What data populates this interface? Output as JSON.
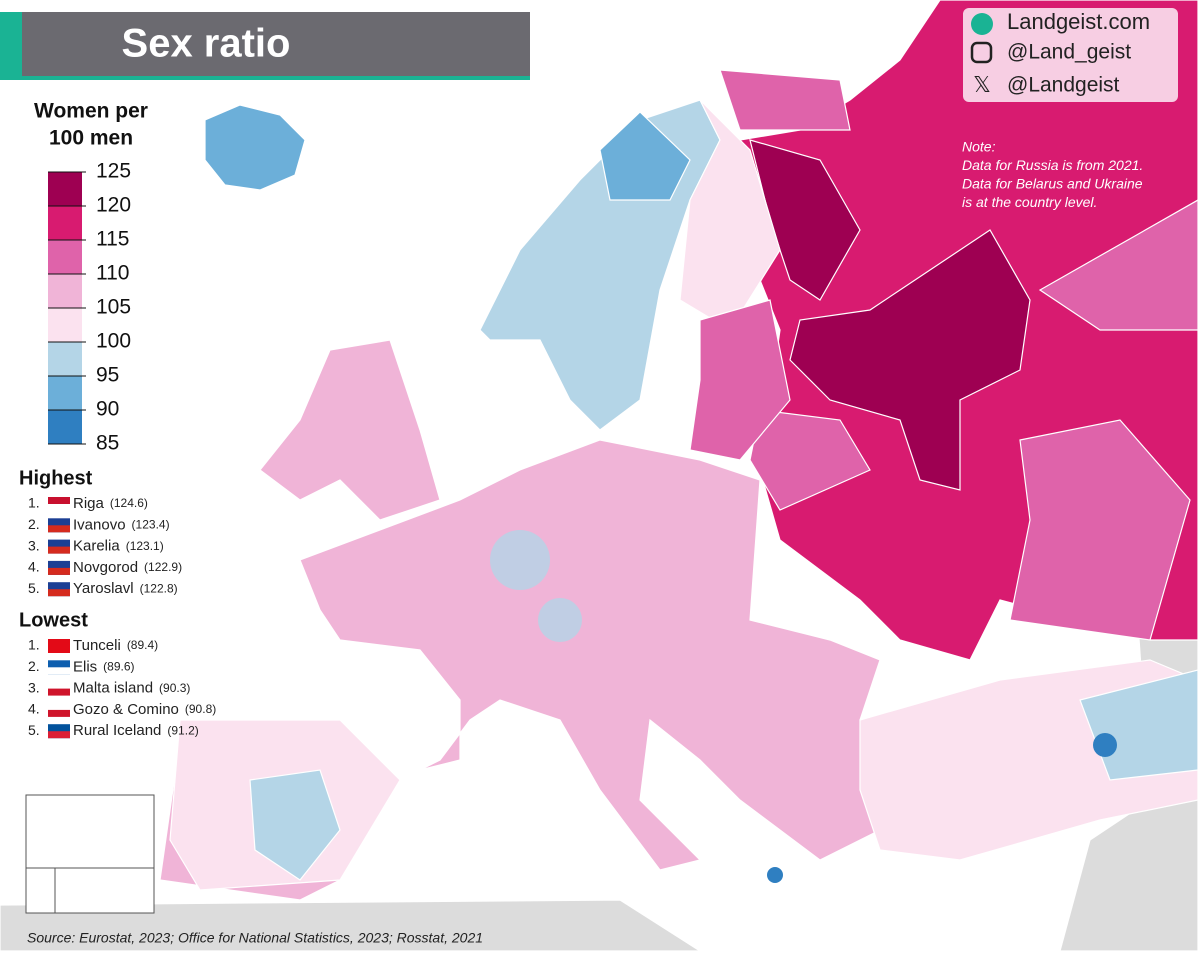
{
  "title": "Sex ratio",
  "social": [
    "Landgeist.com",
    "@Land_geist",
    "@Landgeist"
  ],
  "note": [
    "Note:",
    "Data for Russia is from 2021.",
    "Data for Belarus and Ukraine",
    "is at the country level."
  ],
  "legend": {
    "title": [
      "Women per",
      "100 men"
    ],
    "ticks": [
      125,
      120,
      115,
      110,
      105,
      100,
      95,
      90,
      85
    ],
    "colors": [
      "#9e0052",
      "#d81b70",
      "#df63aa",
      "#f0b4d7",
      "#fbe2ef",
      "#b4d5e7",
      "#6cafd9",
      "#2f7fc1"
    ]
  },
  "highest": {
    "heading": "Highest",
    "items": [
      {
        "rank": "1.",
        "name": "Riga",
        "value": "(124.6)"
      },
      {
        "rank": "2.",
        "name": "Ivanovo",
        "value": "(123.4)"
      },
      {
        "rank": "3.",
        "name": "Karelia",
        "value": "(123.1)"
      },
      {
        "rank": "4.",
        "name": "Novgorod",
        "value": "(122.9)"
      },
      {
        "rank": "5.",
        "name": "Yaroslavl",
        "value": "(122.8)"
      }
    ]
  },
  "lowest": {
    "heading": "Lowest",
    "items": [
      {
        "rank": "1.",
        "name": "Tunceli",
        "value": "(89.4)"
      },
      {
        "rank": "2.",
        "name": "Elis",
        "value": "(89.6)"
      },
      {
        "rank": "3.",
        "name": "Malta island",
        "value": "(90.3)"
      },
      {
        "rank": "4.",
        "name": "Gozo & Comino",
        "value": "(90.8)"
      },
      {
        "rank": "5.",
        "name": "Rural Iceland",
        "value": "(91.2)"
      }
    ]
  },
  "source": "Source: Eurostat, 2023; Office for National Statistics, 2023; Rosstat, 2021"
}
